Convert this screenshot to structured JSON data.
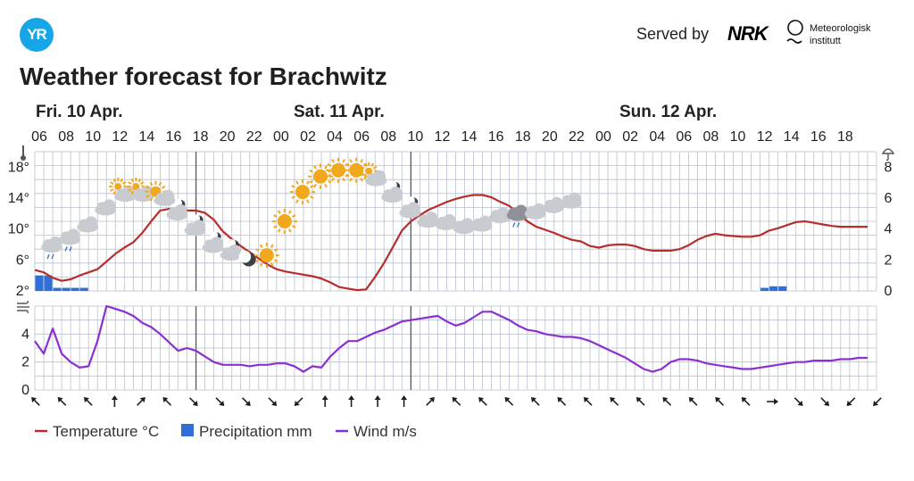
{
  "header": {
    "logo_text": "YR",
    "served_by": "Served by",
    "nrk_label": "NRK",
    "met_name_line1": "Meteorologisk",
    "met_name_line2": "institutt",
    "title": "Weather forecast for Brachwitz"
  },
  "colors": {
    "temperature": "#b82d2a",
    "precipitation": "#2f6fd6",
    "wind": "#8a2fd1",
    "grid": "#b9bfd0",
    "day_separator": "#555a66",
    "sun": "#f2a81d",
    "cloud": "#c8cbd0"
  },
  "chart_data": {
    "type": "line",
    "days": [
      {
        "label": "Fri. 10 Apr.",
        "index": 0
      },
      {
        "label": "Sat. 11 Apr.",
        "index": 10
      },
      {
        "label": "Sun. 12 Apr.",
        "index": 22
      }
    ],
    "hour_labels": [
      "06",
      "08",
      "10",
      "12",
      "14",
      "16",
      "18",
      "20",
      "22",
      "00",
      "02",
      "04",
      "06",
      "08",
      "10",
      "12",
      "14",
      "16",
      "18",
      "20",
      "22",
      "00",
      "02",
      "04",
      "06",
      "08",
      "10",
      "12",
      "14",
      "16",
      "18"
    ],
    "temperature": {
      "name": "Temperature °C",
      "unit": "°C",
      "ylim": [
        2,
        20
      ],
      "ticks": [
        "2°",
        "6°",
        "10°",
        "14°",
        "18°"
      ],
      "x_hours": [
        0,
        1,
        2,
        3,
        4,
        5,
        6,
        7,
        8,
        9,
        10,
        11,
        12,
        13,
        14,
        15,
        16,
        17,
        18,
        19,
        20,
        21,
        22,
        23,
        24,
        25,
        26,
        27,
        28,
        29,
        30,
        31,
        32,
        33,
        34,
        35,
        36,
        37,
        38,
        39,
        40,
        41,
        42,
        43,
        44,
        45,
        46,
        47,
        48,
        49,
        50,
        51,
        52,
        53,
        54,
        55,
        56,
        57,
        58,
        59,
        60,
        61,
        62,
        63
      ],
      "values": [
        4.7,
        4.4,
        3.7,
        3.3,
        3.5,
        4.0,
        4.4,
        4.8,
        5.8,
        6.8,
        7.6,
        8.3,
        9.5,
        11.0,
        12.4,
        12.6,
        12.5,
        12.4,
        12.4,
        12.1,
        11.2,
        9.7,
        8.7,
        7.8,
        7.0,
        6.2,
        5.4,
        4.8,
        4.5,
        4.3,
        4.1,
        3.9,
        3.6,
        3.1,
        2.5,
        2.3,
        2.1,
        2.2,
        3.8,
        5.6,
        7.7,
        9.8,
        11.0,
        11.8,
        12.5,
        13.0,
        13.5,
        13.9,
        14.2,
        14.4,
        14.4,
        14.1,
        13.5,
        13.0,
        12.0,
        11.0,
        10.3,
        9.9,
        9.5,
        9.0,
        8.6,
        8.4,
        7.8,
        7.6
      ]
    },
    "temperature_tail": {
      "x_hours": [
        63,
        64,
        65,
        66,
        67,
        68,
        69,
        70,
        71,
        72,
        73,
        74,
        75,
        76,
        77,
        78,
        79,
        80,
        81,
        82,
        83,
        84,
        85,
        86,
        87,
        88,
        89,
        90,
        91,
        92,
        93
      ],
      "values": [
        7.6,
        7.9,
        8.0,
        8.0,
        7.8,
        7.4,
        7.2,
        7.2,
        7.2,
        7.4,
        7.9,
        8.6,
        9.1,
        9.4,
        9.2,
        9.1,
        9.0,
        9.0,
        9.2,
        9.8,
        10.1,
        10.5,
        10.9,
        11.0,
        10.8,
        10.6,
        10.4,
        10.3,
        10.3,
        10.3,
        10.3
      ]
    },
    "precipitation": {
      "name": "Precipitation mm",
      "unit": "mm",
      "ylim": [
        0,
        9
      ],
      "ticks": [
        "0",
        "2",
        "4",
        "6",
        "8"
      ],
      "bars": [
        {
          "hour": 0,
          "value": 1.0
        },
        {
          "hour": 1,
          "value": 1.0
        },
        {
          "hour": 2,
          "value": 0.2
        },
        {
          "hour": 3,
          "value": 0.2
        },
        {
          "hour": 4,
          "value": 0.2
        },
        {
          "hour": 5,
          "value": 0.2
        },
        {
          "hour": 81,
          "value": 0.2
        },
        {
          "hour": 82,
          "value": 0.3
        },
        {
          "hour": 83,
          "value": 0.3
        }
      ]
    },
    "wind": {
      "name": "Wind m/s",
      "unit": "m/s",
      "ylim": [
        0,
        6
      ],
      "ticks": [
        "0",
        "2",
        "4"
      ],
      "x_hours": [
        0,
        1,
        2,
        3,
        4,
        5,
        6,
        7,
        8,
        9,
        10,
        11,
        12,
        13,
        14,
        15,
        16,
        17,
        18,
        19,
        20,
        21,
        22,
        23,
        24,
        25,
        26,
        27,
        28,
        29,
        30,
        31,
        32,
        33,
        34,
        35,
        36,
        37,
        38,
        39,
        40,
        41,
        42,
        43,
        44,
        45,
        46,
        47,
        48,
        49,
        50,
        51,
        52,
        53,
        54,
        55,
        56,
        57,
        58,
        59,
        60,
        61,
        62,
        63,
        64,
        65,
        66,
        67,
        68,
        69,
        70,
        71,
        72,
        73,
        74,
        75,
        76,
        77,
        78,
        79,
        80,
        81,
        82,
        83,
        84,
        85,
        86,
        87,
        88,
        89,
        90,
        91,
        92,
        93
      ],
      "values": [
        3.5,
        2.6,
        4.4,
        2.6,
        2.0,
        1.6,
        1.7,
        3.5,
        6.0,
        5.8,
        5.6,
        5.3,
        4.8,
        4.5,
        4.0,
        3.4,
        2.8,
        3.0,
        2.8,
        2.4,
        2.0,
        1.8,
        1.8,
        1.8,
        1.7,
        1.8,
        1.8,
        1.9,
        1.9,
        1.7,
        1.3,
        1.7,
        1.6,
        2.4,
        3.0,
        3.5,
        3.5,
        3.8,
        4.1,
        4.3,
        4.6,
        4.9,
        5.0,
        5.1,
        5.2,
        5.3,
        4.9,
        4.6,
        4.8,
        5.2,
        5.6,
        5.6,
        5.3,
        5.0,
        4.6,
        4.3,
        4.2,
        4.0,
        3.9,
        3.8,
        3.8,
        3.7,
        3.5,
        3.2,
        2.9,
        2.6,
        2.3,
        1.9,
        1.5,
        1.3,
        1.5,
        2.0,
        2.2,
        2.2,
        2.1,
        1.9,
        1.8,
        1.7,
        1.6,
        1.5,
        1.5,
        1.6,
        1.7,
        1.8,
        1.9,
        2.0,
        2.0,
        2.1,
        2.1,
        2.1,
        2.2,
        2.2,
        2.3,
        2.3
      ]
    },
    "wind_arrows_deg": [
      315,
      315,
      315,
      0,
      45,
      315,
      135,
      135,
      135,
      135,
      225,
      0,
      0,
      0,
      0,
      45,
      315,
      315,
      315,
      315,
      315,
      315,
      315,
      315,
      315,
      315,
      315,
      315,
      90,
      135,
      135,
      225,
      225
    ],
    "weather_symbols": [
      {
        "hour": 1,
        "symbol": "cloud-rain",
        "y": 8
      },
      {
        "hour": 3,
        "symbol": "cloud-rain",
        "y": 9
      },
      {
        "hour": 5,
        "symbol": "cloud",
        "y": 10.6
      },
      {
        "hour": 7,
        "symbol": "cloud",
        "y": 12.8
      },
      {
        "hour": 9,
        "symbol": "partly-sunny",
        "y": 14.8
      },
      {
        "hour": 11,
        "symbol": "partly-sunny",
        "y": 14.8
      },
      {
        "hour": 13,
        "symbol": "sun-cloud",
        "y": 14.6
      },
      {
        "hour": 15,
        "symbol": "moon-cloud",
        "y": 12.5
      },
      {
        "hour": 17,
        "symbol": "moon-cloud",
        "y": 10.5
      },
      {
        "hour": 19,
        "symbol": "moon-cloud",
        "y": 8.3
      },
      {
        "hour": 21,
        "symbol": "moon-cloud",
        "y": 7.3
      },
      {
        "hour": 23,
        "symbol": "moon",
        "y": 6.1
      },
      {
        "hour": 25,
        "symbol": "sun",
        "y": 6.6
      },
      {
        "hour": 27,
        "symbol": "sun",
        "y": 11.0
      },
      {
        "hour": 29,
        "symbol": "sun",
        "y": 14.8
      },
      {
        "hour": 31,
        "symbol": "sun",
        "y": 16.8
      },
      {
        "hour": 33,
        "symbol": "sun",
        "y": 17.6
      },
      {
        "hour": 35,
        "symbol": "sun",
        "y": 17.6
      },
      {
        "hour": 37,
        "symbol": "partly-sunny",
        "y": 16.8
      },
      {
        "hour": 39,
        "symbol": "moon-cloud",
        "y": 14.8
      },
      {
        "hour": 41,
        "symbol": "moon-cloud",
        "y": 12.8
      },
      {
        "hour": 43,
        "symbol": "cloud",
        "y": 11.2
      },
      {
        "hour": 45,
        "symbol": "cloud",
        "y": 10.9
      },
      {
        "hour": 47,
        "symbol": "cloud",
        "y": 10.4
      },
      {
        "hour": 49,
        "symbol": "cloud",
        "y": 10.7
      },
      {
        "hour": 51,
        "symbol": "cloud",
        "y": 11.8
      },
      {
        "hour": 53,
        "symbol": "cloud-rain-dark",
        "y": 12.1
      },
      {
        "hour": 55,
        "symbol": "cloud",
        "y": 12.3
      },
      {
        "hour": 57,
        "symbol": "cloud",
        "y": 13.1
      },
      {
        "hour": 59,
        "symbol": "cloud",
        "y": 13.7
      }
    ],
    "legend": {
      "position": "bottom-left",
      "entries": [
        "Temperature °C",
        "Precipitation mm",
        "Wind m/s"
      ]
    }
  }
}
